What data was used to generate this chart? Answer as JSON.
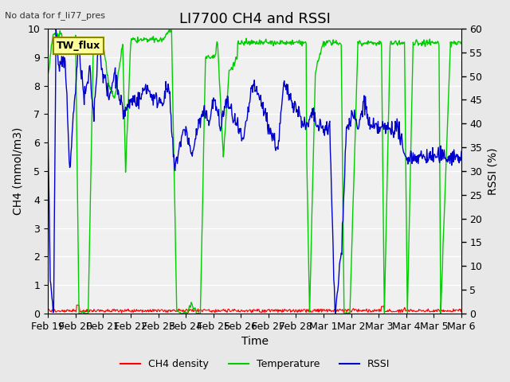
{
  "title": "LI7700 CH4 and RSSI",
  "top_left_text": "No data for f_li77_pres",
  "box_label": "TW_flux",
  "xlabel": "Time",
  "ylabel_left": "CH4 (mmol/m3)",
  "ylabel_right": "RSSI (%)",
  "xlim_days": [
    0,
    15
  ],
  "ylim_left": [
    0.0,
    10.0
  ],
  "ylim_right": [
    0,
    60
  ],
  "yticks_left": [
    0.0,
    1.0,
    2.0,
    3.0,
    4.0,
    5.0,
    6.0,
    7.0,
    8.0,
    9.0,
    10.0
  ],
  "yticks_right": [
    0,
    5,
    10,
    15,
    20,
    25,
    30,
    35,
    40,
    45,
    50,
    55,
    60
  ],
  "xtick_labels": [
    "Feb 19",
    "Feb 20",
    "Feb 21",
    "Feb 22",
    "Feb 23",
    "Feb 24",
    "Feb 25",
    "Feb 26",
    "Feb 27",
    "Feb 28",
    "Mar 1",
    "Mar 2",
    "Mar 3",
    "Mar 4",
    "Mar 5",
    "Mar 6"
  ],
  "bg_color": "#e8e8e8",
  "plot_bg_color": "#f0f0f0",
  "grid_color": "#ffffff",
  "ch4_color": "#ff0000",
  "temp_color": "#00cc00",
  "rssi_color": "#0000cc",
  "legend_labels": [
    "CH4 density",
    "Temperature",
    "RSSI"
  ],
  "title_fontsize": 13,
  "axis_fontsize": 10,
  "tick_fontsize": 9
}
